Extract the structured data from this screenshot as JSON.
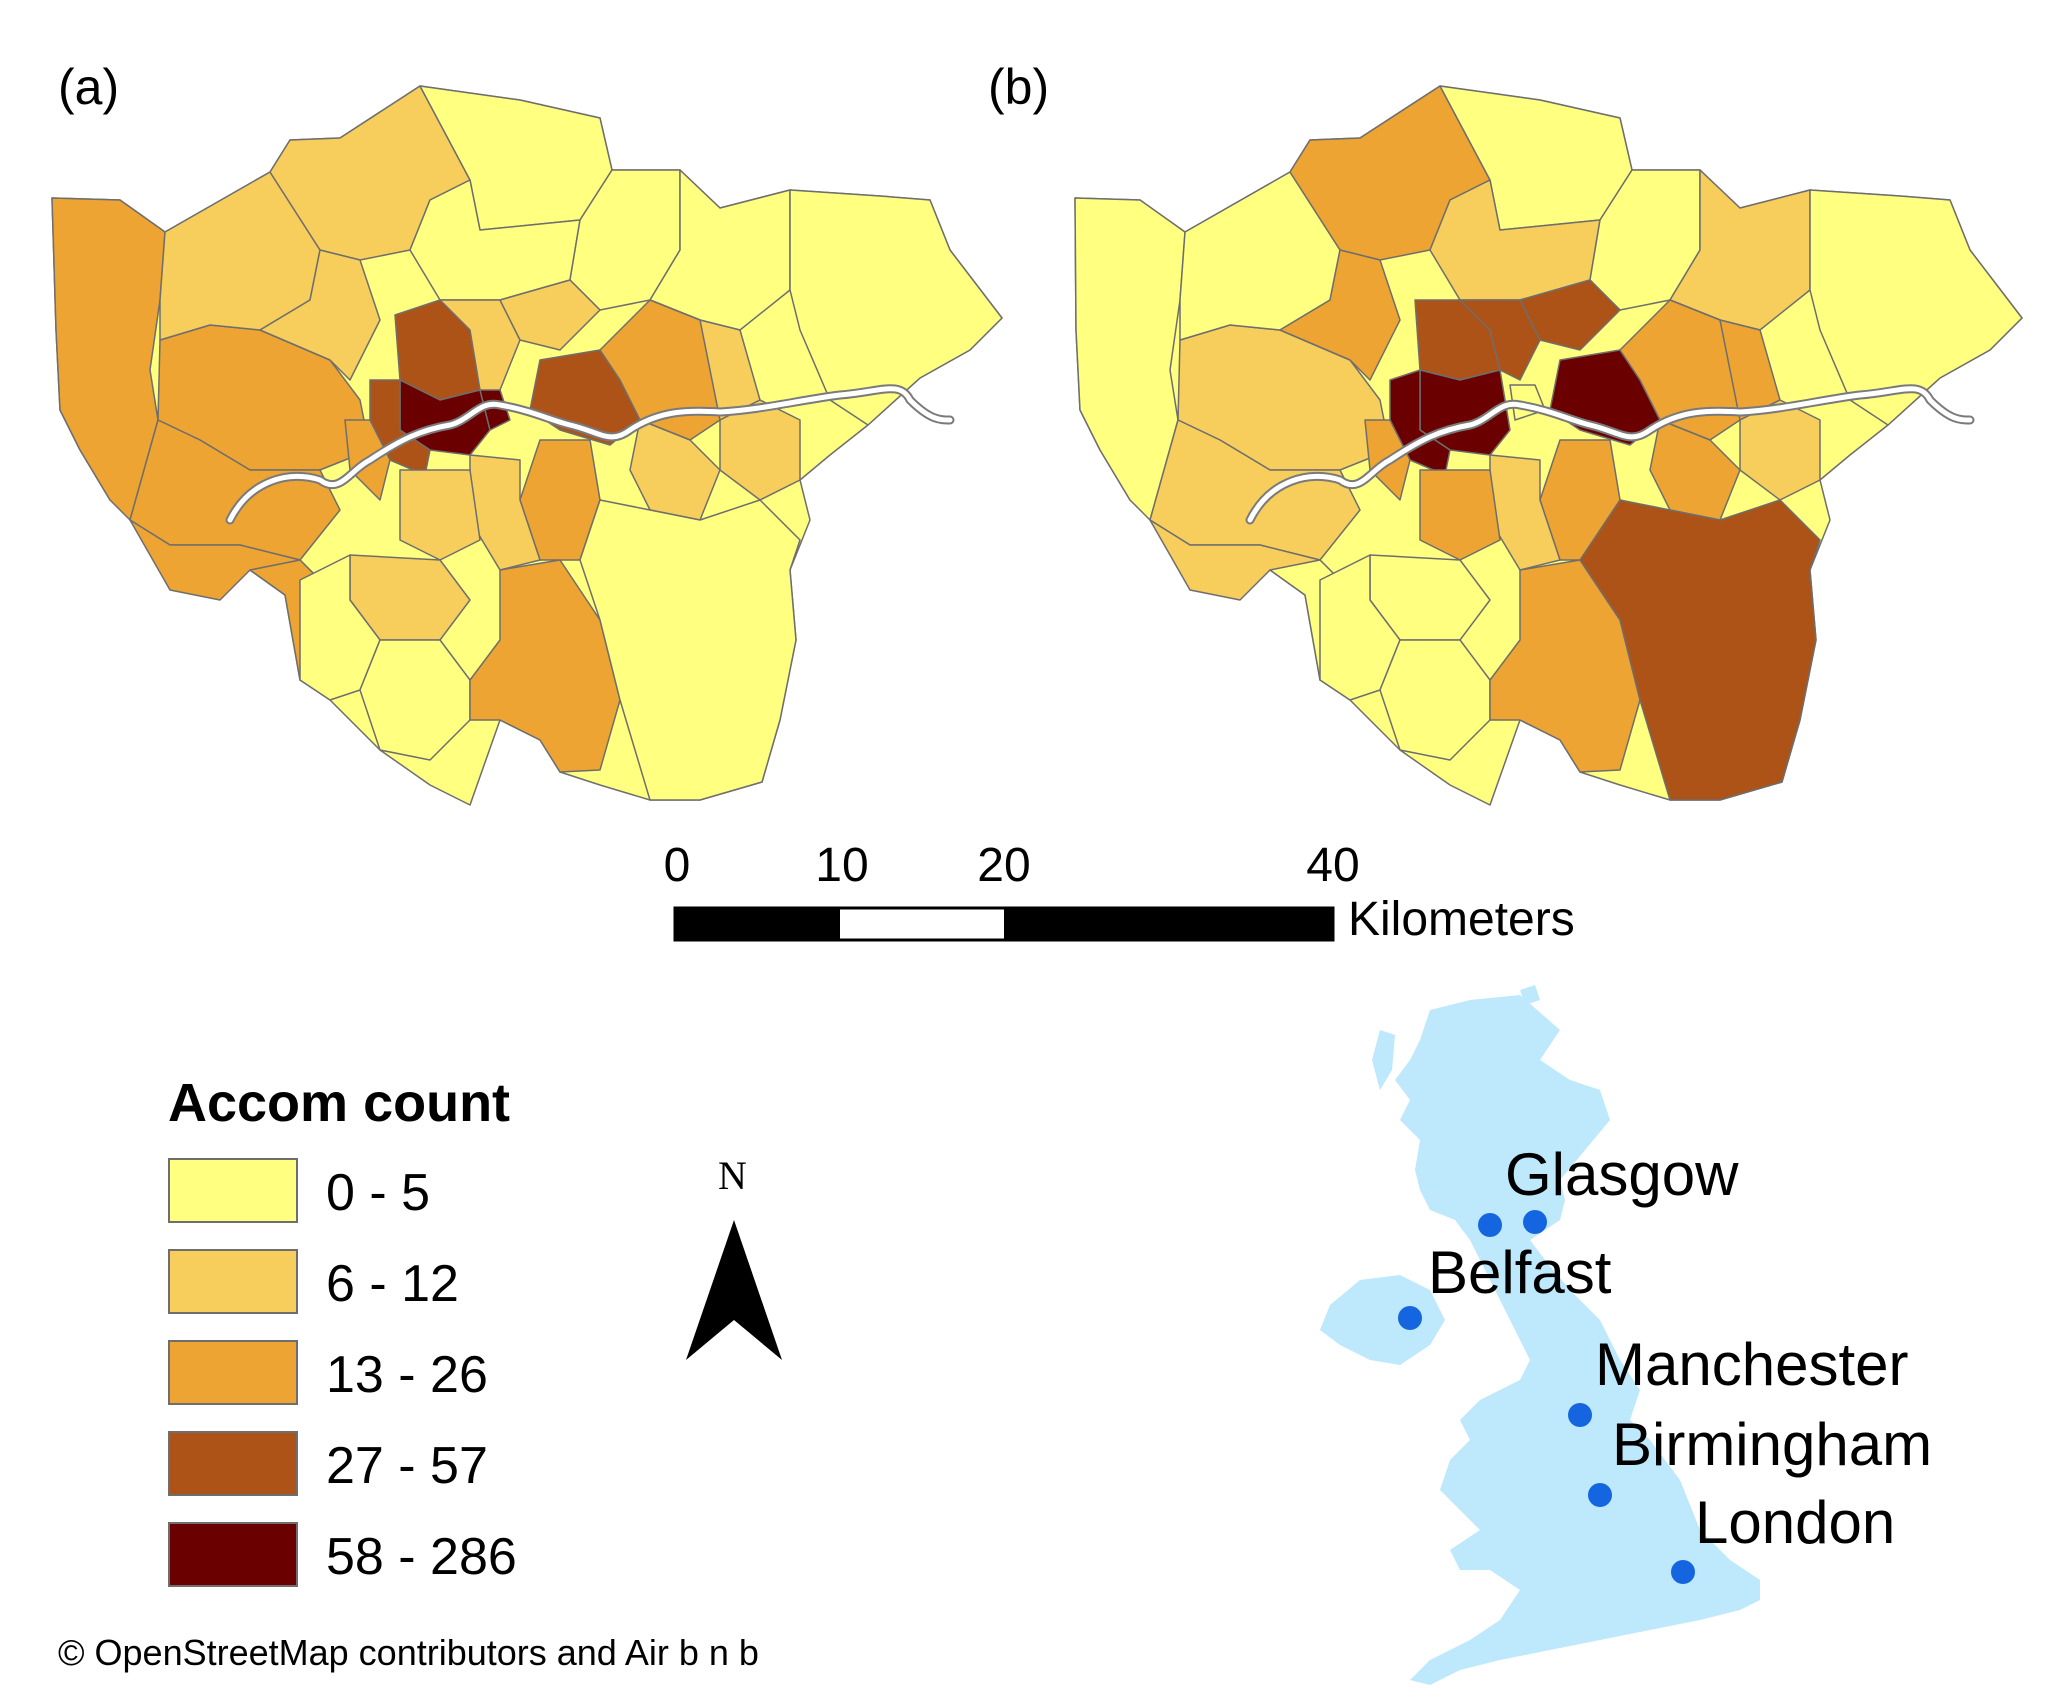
{
  "panels": [
    {
      "label": "(a)"
    },
    {
      "label": "(b)"
    }
  ],
  "scale_bar": {
    "ticks": [
      "0",
      "10",
      "20",
      "40"
    ],
    "unit": "Kilometers"
  },
  "legend": {
    "title": "Accom count",
    "classes": [
      {
        "label": "0 - 5",
        "color": "#ffff80"
      },
      {
        "label": "6 - 12",
        "color": "#f7cd5c"
      },
      {
        "label": "13 - 26",
        "color": "#eda432"
      },
      {
        "label": "27 - 57",
        "color": "#ae5317"
      },
      {
        "label": "58 - 286",
        "color": "#6b0000"
      }
    ]
  },
  "north_arrow": {
    "label": "N"
  },
  "inset_map": {
    "land_color": "#bee8fb",
    "marker_color": "#1565e0",
    "cities": [
      {
        "name": "Glasgow"
      },
      {
        "name": "Belfast"
      },
      {
        "name": "Manchester"
      },
      {
        "name": "Birmingham"
      },
      {
        "name": "London"
      }
    ]
  },
  "credit": "© OpenStreetMap contributors and Air b n b"
}
